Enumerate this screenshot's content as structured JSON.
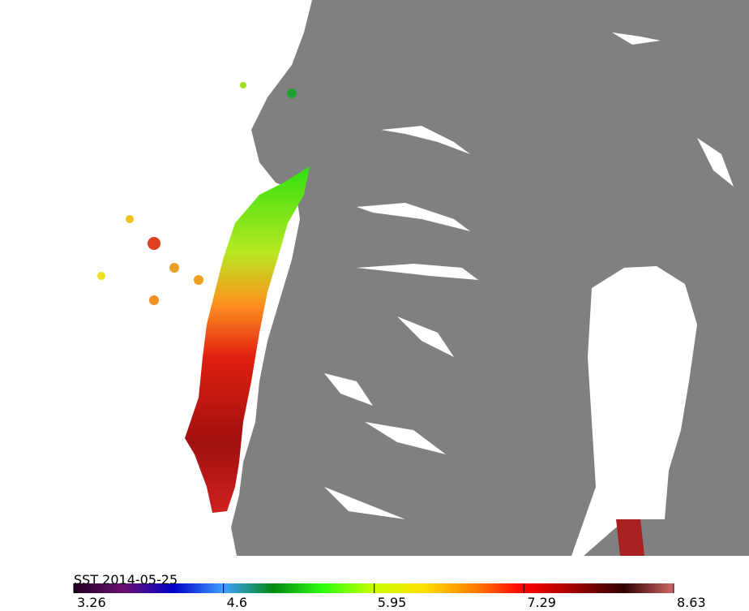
{
  "colorbar": {
    "label": "SST  2014-05-25",
    "lim": [
      3.26,
      8.63
    ],
    "ticks": [
      3.26,
      4.6,
      5.95,
      7.29,
      8.63
    ],
    "colors": [
      "#200020",
      "#6a1070",
      "#0000c8",
      "#40a0ff",
      "#008a10",
      "#30ff10",
      "#c8ff00",
      "#ffe000",
      "#ff8000",
      "#ff0000",
      "#a00000",
      "#300000",
      "#d06868"
    ]
  }
}
